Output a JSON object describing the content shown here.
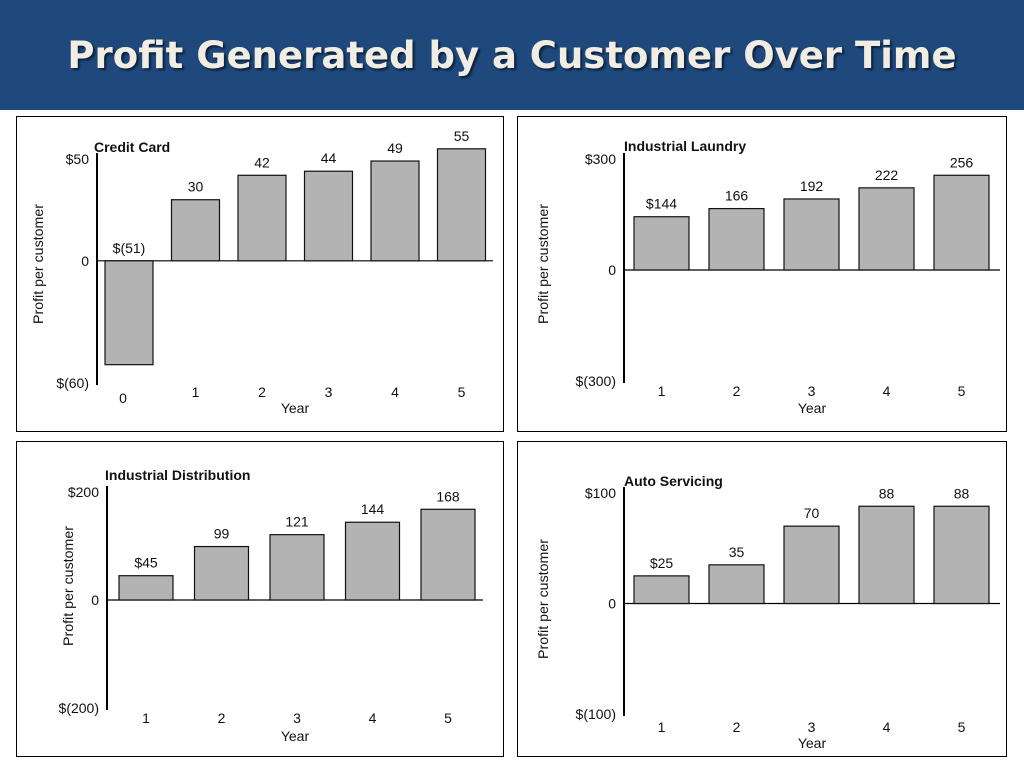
{
  "slide": {
    "title": "Profit Generated by a Customer Over Time"
  },
  "colors": {
    "header_bg": "#1f497d",
    "title_text": "#f2ede2",
    "bar_fill": "#b3b3b3"
  },
  "chart_data": [
    {
      "type": "bar",
      "title": "Credit Card",
      "xlabel": "Year",
      "ylabel": "Profit per customer",
      "categories": [
        "0",
        "1",
        "2",
        "3",
        "4",
        "5"
      ],
      "values": [
        -51,
        30,
        42,
        44,
        49,
        55
      ],
      "data_labels": [
        "$(51)",
        "30",
        "42",
        "44",
        "49",
        "55"
      ],
      "ylim": [
        -60,
        50
      ],
      "yticks": [
        {
          "value": 50,
          "label": "$50"
        },
        {
          "value": 0,
          "label": "0"
        },
        {
          "value": -60,
          "label": "$(60)"
        }
      ],
      "grid": false
    },
    {
      "type": "bar",
      "title": "Industrial Laundry",
      "xlabel": "Year",
      "ylabel": "Profit per customer",
      "categories": [
        "1",
        "2",
        "3",
        "4",
        "5"
      ],
      "values": [
        144,
        166,
        192,
        222,
        256
      ],
      "data_labels": [
        "$144",
        "166",
        "192",
        "222",
        "256"
      ],
      "ylim": [
        -300,
        300
      ],
      "yticks": [
        {
          "value": 300,
          "label": "$300"
        },
        {
          "value": 0,
          "label": "0"
        },
        {
          "value": -300,
          "label": "$(300)"
        }
      ],
      "grid": false
    },
    {
      "type": "bar",
      "title": "Industrial Distribution",
      "xlabel": "Year",
      "ylabel": "Profit per customer",
      "categories": [
        "1",
        "2",
        "3",
        "4",
        "5"
      ],
      "values": [
        45,
        99,
        121,
        144,
        168
      ],
      "data_labels": [
        "$45",
        "99",
        "121",
        "144",
        "168"
      ],
      "ylim": [
        -200,
        200
      ],
      "yticks": [
        {
          "value": 200,
          "label": "$200"
        },
        {
          "value": 0,
          "label": "0"
        },
        {
          "value": -200,
          "label": "$(200)"
        }
      ],
      "grid": false
    },
    {
      "type": "bar",
      "title": "Auto Servicing",
      "xlabel": "Year",
      "ylabel": "Profit per customer",
      "categories": [
        "1",
        "2",
        "3",
        "4",
        "5"
      ],
      "values": [
        25,
        35,
        70,
        88,
        88
      ],
      "data_labels": [
        "$25",
        "35",
        "70",
        "88",
        "88"
      ],
      "ylim": [
        -100,
        100
      ],
      "yticks": [
        {
          "value": 100,
          "label": "$100"
        },
        {
          "value": 0,
          "label": "0"
        },
        {
          "value": -100,
          "label": "$(100)"
        }
      ],
      "grid": false
    }
  ]
}
